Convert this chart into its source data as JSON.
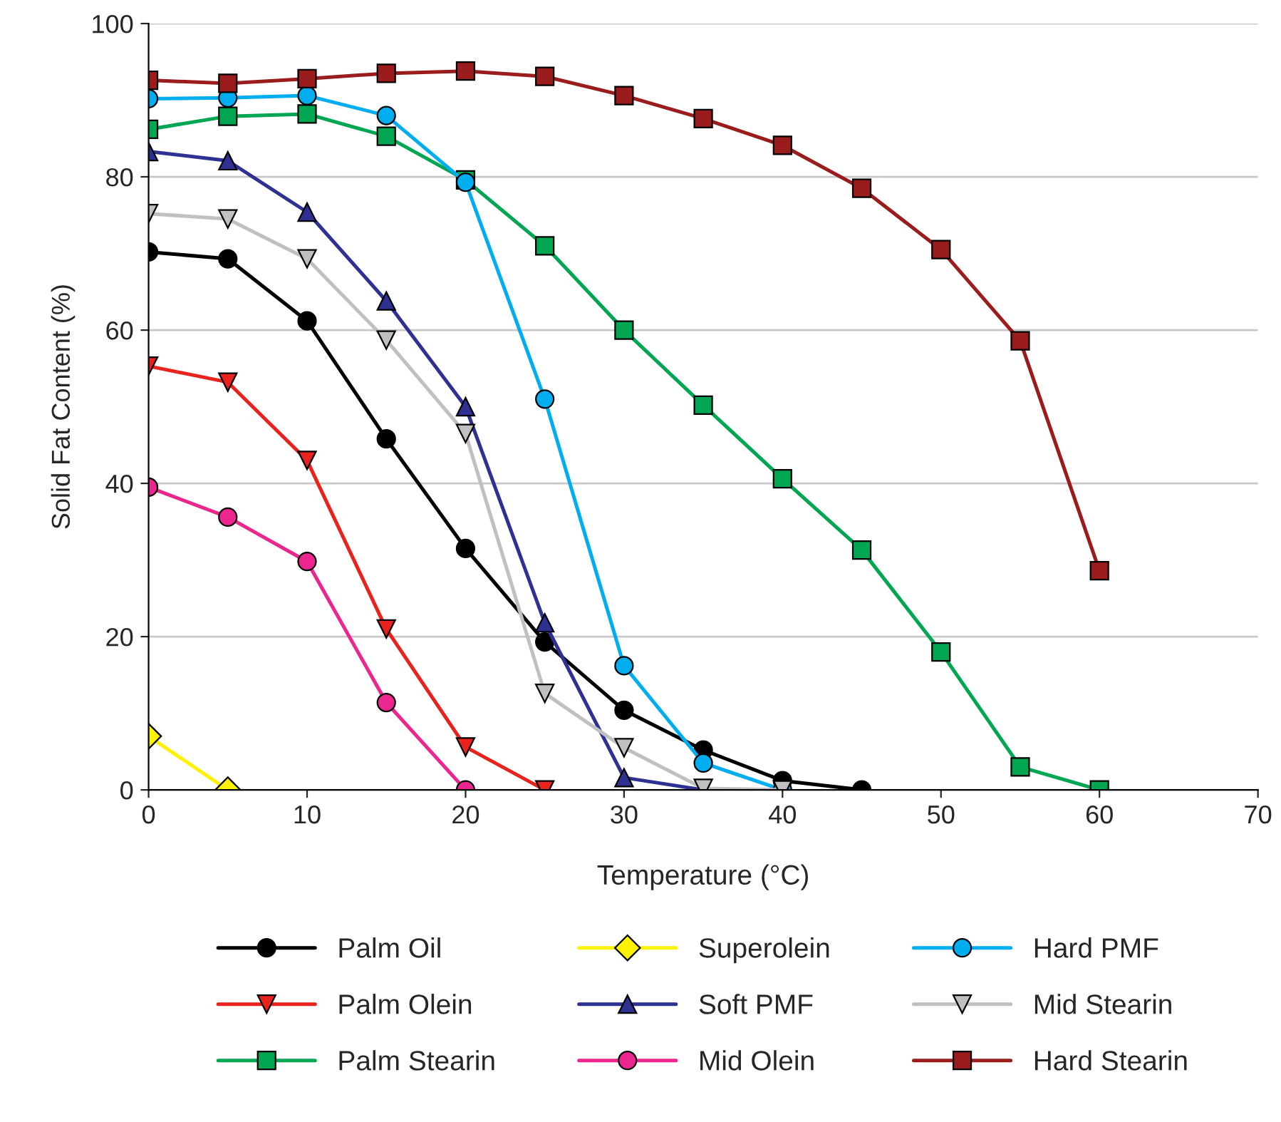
{
  "chart_data": {
    "type": "line",
    "xlabel": "Temperature (°C)",
    "ylabel": "Solid Fat Content (%)",
    "xlim": [
      0,
      70
    ],
    "xticks": [
      0,
      10,
      20,
      30,
      40,
      50,
      60,
      70
    ],
    "ylim": [
      0,
      100
    ],
    "yticks": [
      0,
      20,
      40,
      60,
      80,
      100
    ],
    "grid": "y",
    "legend": "bottom",
    "line_style": "solid",
    "series": [
      {
        "name": "Palm Oil",
        "color": "#000000",
        "marker": "circle",
        "x": [
          0,
          5,
          10,
          15,
          20,
          25,
          30,
          35,
          40,
          45
        ],
        "values": [
          70.2,
          69.3,
          61.2,
          45.8,
          31.5,
          19.3,
          10.4,
          5.2,
          1.2,
          0
        ]
      },
      {
        "name": "Palm Olein",
        "color": "#e8221c",
        "marker": "triangle_down",
        "x": [
          0,
          5,
          10,
          15,
          20,
          25
        ],
        "values": [
          55.3,
          53.2,
          43,
          21,
          5.6,
          0
        ]
      },
      {
        "name": "Palm Stearin",
        "color": "#00a651",
        "marker": "square",
        "x": [
          0,
          5,
          10,
          15,
          20,
          25,
          30,
          35,
          40,
          45,
          50,
          55,
          60
        ],
        "values": [
          86.2,
          87.9,
          88.2,
          85.3,
          79.6,
          71,
          60,
          50.2,
          40.6,
          31.3,
          18,
          3,
          0
        ]
      },
      {
        "name": "Superolein",
        "color": "#fff200",
        "marker": "diamond",
        "x": [
          0,
          5
        ],
        "values": [
          7,
          0
        ]
      },
      {
        "name": "Soft PMF",
        "color": "#2e3192",
        "marker": "triangle",
        "x": [
          0,
          5,
          10,
          15,
          20,
          25,
          30,
          35
        ],
        "values": [
          83.3,
          82.1,
          75.4,
          63.8,
          50,
          21.8,
          1.6,
          0
        ]
      },
      {
        "name": "Mid Olein",
        "color": "#ec268f",
        "marker": "circle",
        "x": [
          0,
          5,
          10,
          15,
          20
        ],
        "values": [
          39.5,
          35.6,
          29.8,
          11.4,
          0
        ]
      },
      {
        "name": "Hard PMF",
        "color": "#00aeef",
        "marker": "circle",
        "x": [
          0,
          5,
          10,
          15,
          20,
          25,
          30,
          35,
          40
        ],
        "values": [
          90.2,
          90.3,
          90.6,
          88,
          79.3,
          51,
          16.2,
          3.5,
          0
        ]
      },
      {
        "name": "Mid Stearin",
        "color": "#c0c0c0",
        "marker": "triangle_down",
        "x": [
          0,
          5,
          10,
          15,
          20,
          25,
          30,
          35,
          40
        ],
        "values": [
          75.2,
          74.5,
          69.3,
          58.7,
          46.5,
          12.6,
          5.5,
          0.2,
          0
        ]
      },
      {
        "name": "Hard Stearin",
        "color": "#9b1c1c",
        "marker": "square",
        "x": [
          0,
          5,
          10,
          15,
          20,
          25,
          30,
          35,
          40,
          45,
          50,
          55,
          60
        ],
        "values": [
          92.6,
          92.2,
          92.8,
          93.5,
          93.8,
          93.1,
          90.6,
          87.6,
          84.1,
          78.5,
          70.5,
          58.6,
          28.6
        ]
      }
    ]
  }
}
